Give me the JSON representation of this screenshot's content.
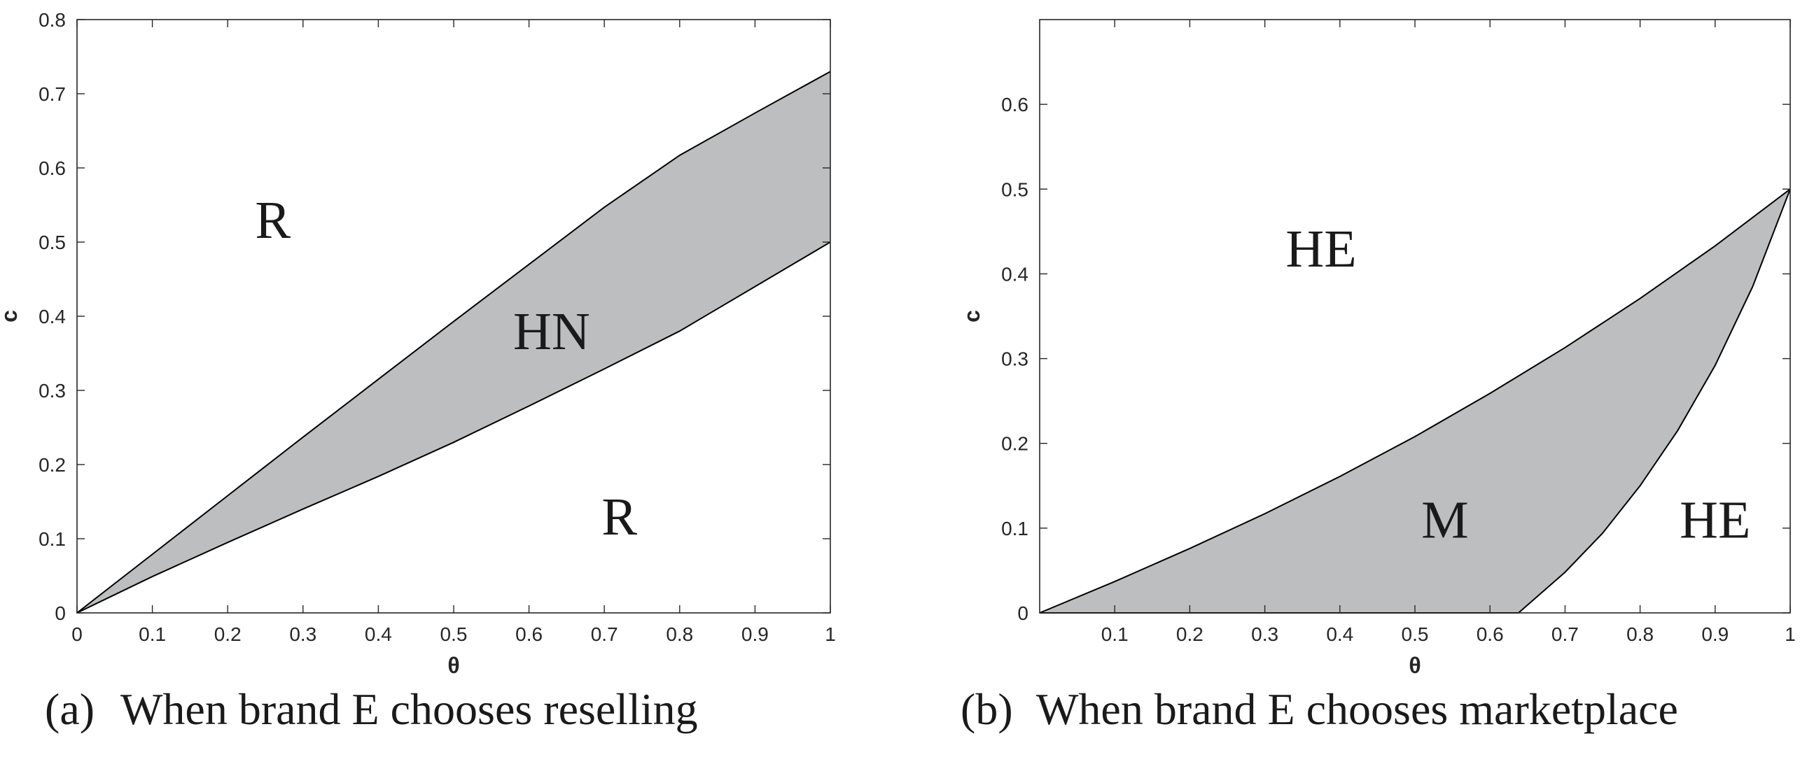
{
  "chart_data": [
    {
      "id": "a",
      "type": "area",
      "caption_tag": "(a)",
      "caption_text": "When brand E chooses reselling",
      "xlabel": "θ",
      "ylabel": "c",
      "xlim": [
        0,
        1
      ],
      "ylim": [
        0,
        0.8
      ],
      "xticks": [
        0,
        0.1,
        0.2,
        0.3,
        0.4,
        0.5,
        0.6,
        0.7,
        0.8,
        0.9,
        1
      ],
      "xtick_labels": [
        "0",
        "0.1",
        "0.2",
        "0.3",
        "0.4",
        "0.5",
        "0.6",
        "0.7",
        "0.8",
        "0.9",
        "1"
      ],
      "yticks": [
        0,
        0.1,
        0.2,
        0.3,
        0.4,
        0.5,
        0.6,
        0.7,
        0.8
      ],
      "ytick_labels": [
        "0",
        "0.1",
        "0.2",
        "0.3",
        "0.4",
        "0.5",
        "0.6",
        "0.7",
        "0.8"
      ],
      "grid": false,
      "fill_color": "#bdbebf",
      "upper_curve": {
        "x": [
          0,
          0.1,
          0.2,
          0.3,
          0.4,
          0.5,
          0.6,
          0.7,
          0.8,
          0.9,
          1
        ],
        "y": [
          0,
          0.079,
          0.158,
          0.237,
          0.315,
          0.393,
          0.47,
          0.547,
          0.617,
          0.674,
          0.73
        ]
      },
      "lower_curve": {
        "x": [
          0,
          0.1,
          0.2,
          0.3,
          0.4,
          0.5,
          0.6,
          0.7,
          0.8,
          0.9,
          1
        ],
        "y": [
          0,
          0.049,
          0.095,
          0.14,
          0.184,
          0.23,
          0.279,
          0.329,
          0.38,
          0.44,
          0.5
        ]
      },
      "regions": [
        {
          "label": "R",
          "x": 0.26,
          "y": 0.53
        },
        {
          "label": "HN",
          "x": 0.63,
          "y": 0.38
        },
        {
          "label": "R",
          "x": 0.72,
          "y": 0.13
        }
      ]
    },
    {
      "id": "b",
      "type": "area",
      "caption_tag": "(b)",
      "caption_text": "When brand E chooses marketplace",
      "xlabel": "θ",
      "ylabel": "c",
      "xlim": [
        0,
        1
      ],
      "ylim": [
        0,
        0.7
      ],
      "xticks": [
        0.1,
        0.2,
        0.3,
        0.4,
        0.5,
        0.6,
        0.7,
        0.8,
        0.9,
        1
      ],
      "xtick_labels": [
        "0.1",
        "0.2",
        "0.3",
        "0.4",
        "0.5",
        "0.6",
        "0.7",
        "0.8",
        "0.9",
        "1"
      ],
      "yticks": [
        0,
        0.1,
        0.2,
        0.3,
        0.4,
        0.5,
        0.6
      ],
      "ytick_labels": [
        "0",
        "0.1",
        "0.2",
        "0.3",
        "0.4",
        "0.5",
        "0.6"
      ],
      "grid": false,
      "fill_color": "#bdbebf",
      "upper_curve": {
        "x": [
          0,
          0.1,
          0.2,
          0.3,
          0.4,
          0.5,
          0.6,
          0.7,
          0.8,
          0.9,
          1
        ],
        "y": [
          0,
          0.037,
          0.076,
          0.117,
          0.161,
          0.208,
          0.259,
          0.313,
          0.371,
          0.433,
          0.5
        ]
      },
      "lower_curve": {
        "x": [
          0,
          0.638,
          0.7,
          0.75,
          0.8,
          0.85,
          0.9,
          0.95,
          1
        ],
        "y": [
          0,
          0,
          0.048,
          0.094,
          0.15,
          0.215,
          0.292,
          0.385,
          0.5
        ]
      },
      "regions": [
        {
          "label": "HE",
          "x": 0.375,
          "y": 0.43
        },
        {
          "label": "M",
          "x": 0.54,
          "y": 0.11
        },
        {
          "label": "HE",
          "x": 0.9,
          "y": 0.11
        }
      ]
    }
  ]
}
